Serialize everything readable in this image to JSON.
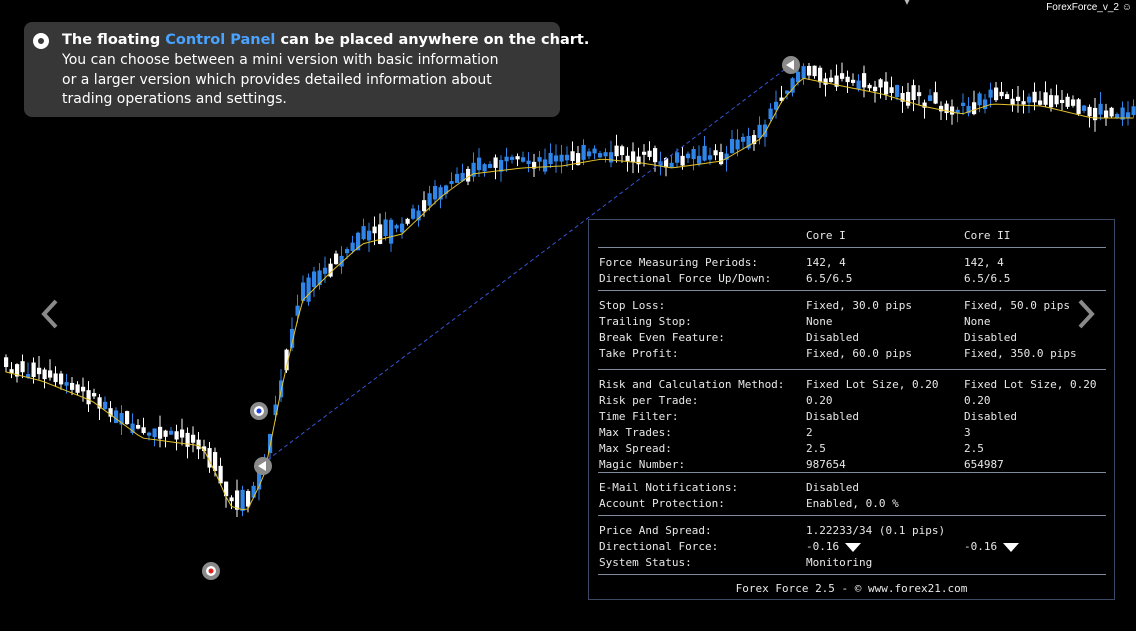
{
  "version_label": "ForexForce_v_2",
  "tooltip": {
    "headline_pre": "The floating ",
    "headline_highlight": "Control Panel",
    "headline_post": " can be placed anywhere on the chart.",
    "body_lines": [
      "You can choose between a mini version with basic information",
      "or a larger version which provides detailed information about",
      "trading operations and settings."
    ]
  },
  "colors": {
    "bull": "#2f86e8",
    "bear": "#ffffff",
    "ma": "#e3c229",
    "trend": "#3555d6",
    "panel_border": "#3c4a66"
  },
  "panel": {
    "header": {
      "col1": "Core I",
      "col2": "Core II"
    },
    "sections": [
      [
        {
          "label": "Force Measuring Periods:",
          "core1": "142, 4",
          "core2": "142, 4"
        },
        {
          "label": "Directional Force Up/Down:",
          "core1": "6.5/6.5",
          "core2": "6.5/6.5"
        }
      ],
      [
        {
          "label": "Stop Loss:",
          "core1": "Fixed, 30.0 pips",
          "core2": "Fixed, 50.0 pips"
        },
        {
          "label": "Trailing Stop:",
          "core1": "None",
          "core2": "None"
        },
        {
          "label": "Break Even Feature:",
          "core1": "Disabled",
          "core2": "Disabled"
        },
        {
          "label": "Take Profit:",
          "core1": "Fixed, 60.0 pips",
          "core2": "Fixed, 350.0 pips"
        }
      ],
      [
        {
          "label": "Risk and Calculation Method:",
          "core1": "Fixed Lot Size, 0.20",
          "core2": "Fixed Lot Size, 0.20"
        },
        {
          "label": "Risk per Trade:",
          "core1": "0.20",
          "core2": "0.20"
        },
        {
          "label": "Time Filter:",
          "core1": "Disabled",
          "core2": "Disabled"
        },
        {
          "label": "Max Trades:",
          "core1": "2",
          "core2": "3"
        },
        {
          "label": "Max Spread:",
          "core1": "2.5",
          "core2": "2.5"
        },
        {
          "label": "Magic Number:",
          "core1": "987654",
          "core2": "654987"
        }
      ],
      [
        {
          "label": "E-Mail Notifications:",
          "core1": "Disabled",
          "core2": ""
        },
        {
          "label": "Account Protection:",
          "core1": "Enabled, 0.0 %",
          "core2": ""
        }
      ],
      [
        {
          "label": "Price And Spread:",
          "core1": "1.22233/34 (0.1 pips)",
          "core2": ""
        },
        {
          "label": "Directional Force:",
          "core1": "-0.16",
          "core2": "-0.16",
          "arrows": true
        },
        {
          "label": "System Status:",
          "core1": "Monitoring",
          "core2": ""
        }
      ]
    ],
    "footer": "Forex Force 2.5 - © www.forex21.com"
  },
  "nav": {
    "prev_icon": "chevron-left-icon",
    "next_icon": "chevron-right-icon"
  }
}
